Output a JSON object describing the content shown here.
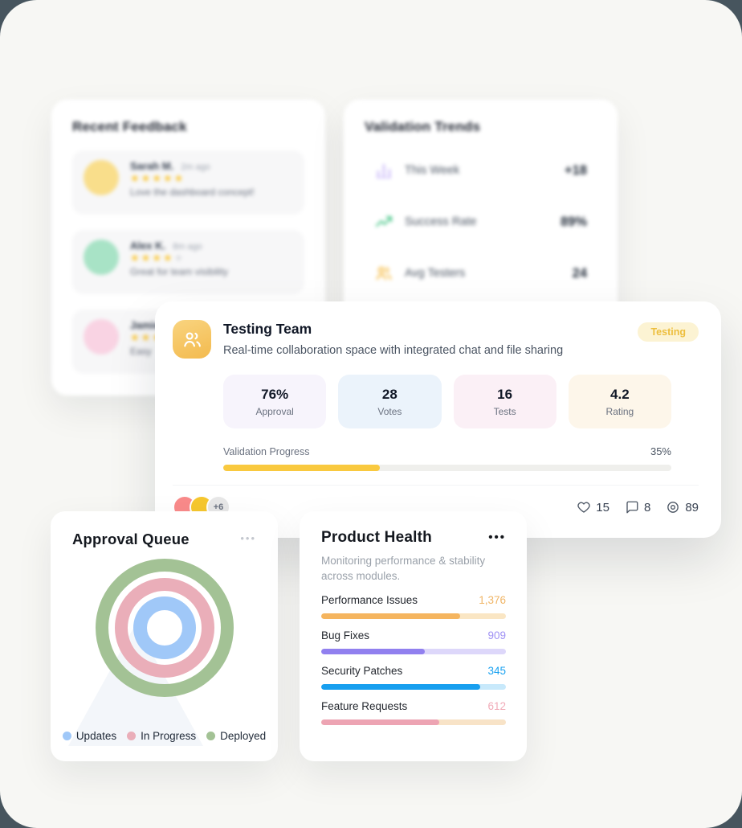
{
  "theme": {
    "page_bg": "#47555E",
    "surface_bg": "#F7F7F4",
    "accent_yellow": "#F9C93F"
  },
  "recent_feedback": {
    "title": "Recent Feedback",
    "items": [
      {
        "name": "Sarah M.",
        "time": "2m ago",
        "rating": 5,
        "max_rating": 5,
        "comment": "Love the dashboard concept!",
        "avatar_color": "#F9DE8B"
      },
      {
        "name": "Alex K.",
        "time": "8m ago",
        "rating": 4,
        "max_rating": 5,
        "comment": "Great for team visibility",
        "avatar_color": "#A8E3C6"
      },
      {
        "name": "Jamie",
        "time": "",
        "rating": 5,
        "max_rating": 5,
        "comment": "Easy",
        "avatar_color": "#F9D3E3"
      }
    ]
  },
  "validation_trends": {
    "title": "Validation Trends",
    "rows": [
      {
        "icon": "bar-chart-icon",
        "label": "This Week",
        "value": "+18",
        "icon_color": "#BEA9F7"
      },
      {
        "icon": "trending-up-icon",
        "label": "Success Rate",
        "value": "89%",
        "icon_color": "#45C586"
      },
      {
        "icon": "users-icon",
        "label": "Avg Testers",
        "value": "24",
        "icon_color": "#F5B83D"
      }
    ]
  },
  "testing_team": {
    "title": "Testing Team",
    "badge": "Testing",
    "description": "Real-time collaboration space with integrated chat and file sharing",
    "stats": [
      {
        "value": "76%",
        "label": "Approval",
        "bg": "#F7F4FC"
      },
      {
        "value": "28",
        "label": "Votes",
        "bg": "#EBF3FB"
      },
      {
        "value": "16",
        "label": "Tests",
        "bg": "#FBF0F6"
      },
      {
        "value": "4.2",
        "label": "Rating",
        "bg": "#FDF6EA"
      }
    ],
    "progress": {
      "label": "Validation Progress",
      "value": "35%",
      "pct": 35,
      "color": "#F9C93F"
    },
    "avatars": [
      {
        "color": "#F98A8A"
      },
      {
        "color": "#F6C72F"
      }
    ],
    "more_avatars": "+6",
    "engagement": [
      {
        "icon": "heart-icon",
        "value": "15"
      },
      {
        "icon": "comment-icon",
        "value": "8"
      },
      {
        "icon": "eye-icon",
        "value": "89"
      }
    ]
  },
  "approval_queue": {
    "title": "Approval Queue",
    "menu": "•••",
    "rings": [
      {
        "label": "Deployed",
        "color": "#A3C295"
      },
      {
        "label": "In Progress",
        "color": "#EAAEB9"
      },
      {
        "label": "Updates",
        "color": "#A0C8F8"
      }
    ],
    "legend": [
      {
        "label": "Updates",
        "color": "#A0C8F8"
      },
      {
        "label": "In Progress",
        "color": "#EAAEB9"
      },
      {
        "label": "Deployed",
        "color": "#A3C295"
      }
    ]
  },
  "product_health": {
    "title": "Product Health",
    "menu": "•••",
    "subtitle": "Monitoring performance & stability across modules.",
    "rows": [
      {
        "label": "Performance Issues",
        "value": "1,376",
        "pct": 75,
        "bar": "#F5B55F",
        "track": "#FAE6C4",
        "value_color": "#F0B566"
      },
      {
        "label": "Bug Fixes",
        "value": "909",
        "pct": 56,
        "bar": "#9180EF",
        "track": "#DDD7FA",
        "value_color": "#9F90F4"
      },
      {
        "label": "Security Patches",
        "value": "345",
        "pct": 86,
        "bar": "#189FEF",
        "track": "#C8E9FB",
        "value_color": "#1BA2F0"
      },
      {
        "label": "Feature Requests",
        "value": "612",
        "pct": 64,
        "bar": "#EDA4B3",
        "track": "#F8E3C7",
        "value_color": "#F1ABB8"
      }
    ]
  }
}
